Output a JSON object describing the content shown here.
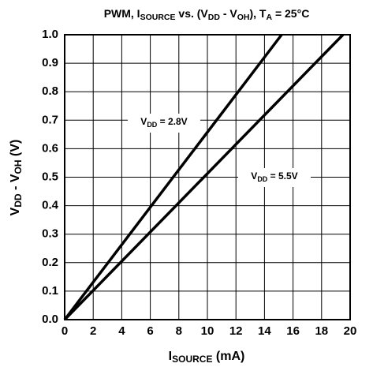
{
  "chart_data": {
    "type": "line",
    "title": [
      "PWM, I",
      "SOURCE",
      " vs. (V",
      "DD",
      " - V",
      "OH",
      "), T",
      "A",
      " = 25°C"
    ],
    "xlabel": [
      "I",
      "SOURCE",
      " (mA)"
    ],
    "ylabel": [
      "V",
      "DD",
      " - V",
      "OH",
      " (V)"
    ],
    "series": [
      {
        "name": [
          "V",
          "DD",
          " = 2.8V"
        ],
        "color": "#000000",
        "x": [
          0,
          15.2
        ],
        "values": [
          0,
          1.0
        ]
      },
      {
        "name": [
          "V",
          "DD",
          " = 5.5V"
        ],
        "color": "#000000",
        "x": [
          0,
          19.5
        ],
        "values": [
          0,
          1.0
        ]
      }
    ],
    "xlim": [
      0,
      20
    ],
    "xticks": [
      0,
      2,
      4,
      6,
      8,
      10,
      12,
      14,
      16,
      18,
      20
    ],
    "ylim": [
      0,
      1.0
    ],
    "yticks": [
      {
        "value": 0,
        "label": "0.0"
      },
      0.1,
      0.2,
      0.3,
      0.4,
      0.5,
      0.6,
      0.7,
      0.8,
      0.9,
      {
        "value": 1.0,
        "label": "1.0"
      }
    ],
    "grid": true
  }
}
